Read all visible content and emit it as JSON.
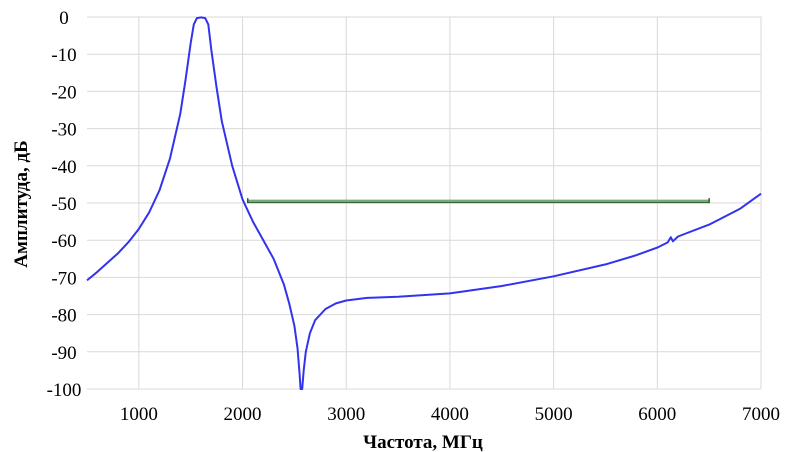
{
  "chart_data": {
    "type": "line",
    "title": "",
    "xlabel": "Частота, МГц",
    "ylabel": "Амплитуда, дБ",
    "xlim": [
      500,
      7000
    ],
    "ylim": [
      -100,
      0
    ],
    "x_ticks": [
      "1000",
      "2000",
      "3000",
      "4000",
      "5000",
      "6000",
      "7000"
    ],
    "y_ticks": [
      "0",
      "-10",
      "-20",
      "-30",
      "-40",
      "-50",
      "-60",
      "-70",
      "-80",
      "-90",
      "-100"
    ],
    "grid": true,
    "legend": "none",
    "colors": {
      "response": "#3333ee",
      "mask": "#7aa87a",
      "mask_caps": "#2e5e2e"
    },
    "series": [
      {
        "values": [
          [
            500,
            -70.8
          ],
          [
            600,
            -68.5
          ],
          [
            700,
            -66
          ],
          [
            800,
            -63.5
          ],
          [
            900,
            -60.5
          ],
          [
            1000,
            -57
          ],
          [
            1100,
            -52.5
          ],
          [
            1200,
            -46.5
          ],
          [
            1300,
            -38
          ],
          [
            1400,
            -26
          ],
          [
            1450,
            -17
          ],
          [
            1500,
            -7
          ],
          [
            1530,
            -2
          ],
          [
            1560,
            -0.3
          ],
          [
            1600,
            -0.1
          ],
          [
            1640,
            -0.3
          ],
          [
            1670,
            -2
          ],
          [
            1700,
            -9
          ],
          [
            1750,
            -19
          ],
          [
            1800,
            -28
          ],
          [
            1900,
            -40
          ],
          [
            2000,
            -49
          ],
          [
            2100,
            -55
          ],
          [
            2200,
            -60
          ],
          [
            2300,
            -65
          ],
          [
            2400,
            -72
          ],
          [
            2450,
            -77
          ],
          [
            2500,
            -83
          ],
          [
            2530,
            -89
          ],
          [
            2550,
            -96
          ],
          [
            2560,
            -100
          ],
          [
            2575,
            -100
          ],
          [
            2590,
            -95
          ],
          [
            2610,
            -90
          ],
          [
            2650,
            -85
          ],
          [
            2700,
            -81.5
          ],
          [
            2800,
            -78.5
          ],
          [
            2900,
            -77
          ],
          [
            3000,
            -76.2
          ],
          [
            3200,
            -75.5
          ],
          [
            3500,
            -75.2
          ],
          [
            4000,
            -74.3
          ],
          [
            4500,
            -72.3
          ],
          [
            5000,
            -69.7
          ],
          [
            5500,
            -66.5
          ],
          [
            5800,
            -64
          ],
          [
            6000,
            -62
          ],
          [
            6100,
            -60.6
          ],
          [
            6130,
            -59.2
          ],
          [
            6150,
            -60.3
          ],
          [
            6200,
            -59
          ],
          [
            6500,
            -55.8
          ],
          [
            6800,
            -51.5
          ],
          [
            7000,
            -47.5
          ]
        ]
      },
      {
        "values": [
          [
            2050,
            -49.5
          ],
          [
            6500,
            -49.5
          ]
        ]
      }
    ]
  }
}
